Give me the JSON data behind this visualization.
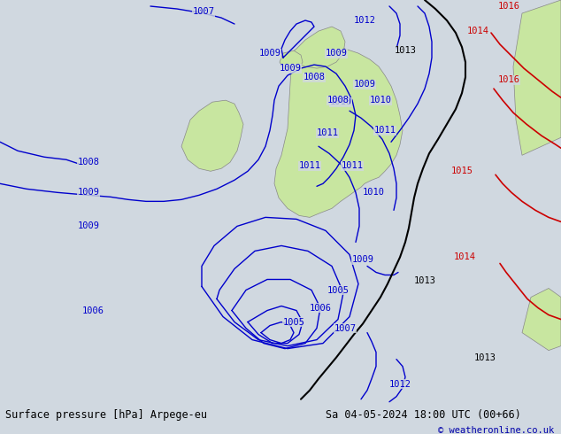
{
  "title_left": "Surface pressure [hPa] Arpege-eu",
  "title_right": "Sa 04-05-2024 18:00 UTC (00+66)",
  "copyright": "© weatheronline.co.uk",
  "bg_color": "#d0d8e0",
  "land_color": "#c8e6a0",
  "fig_width": 6.34,
  "fig_height": 4.9,
  "dpi": 100,
  "isobar_color_blue": "#0000cc",
  "isobar_color_black": "#000000",
  "isobar_color_red": "#cc0000",
  "footer_bg": "#90d090"
}
